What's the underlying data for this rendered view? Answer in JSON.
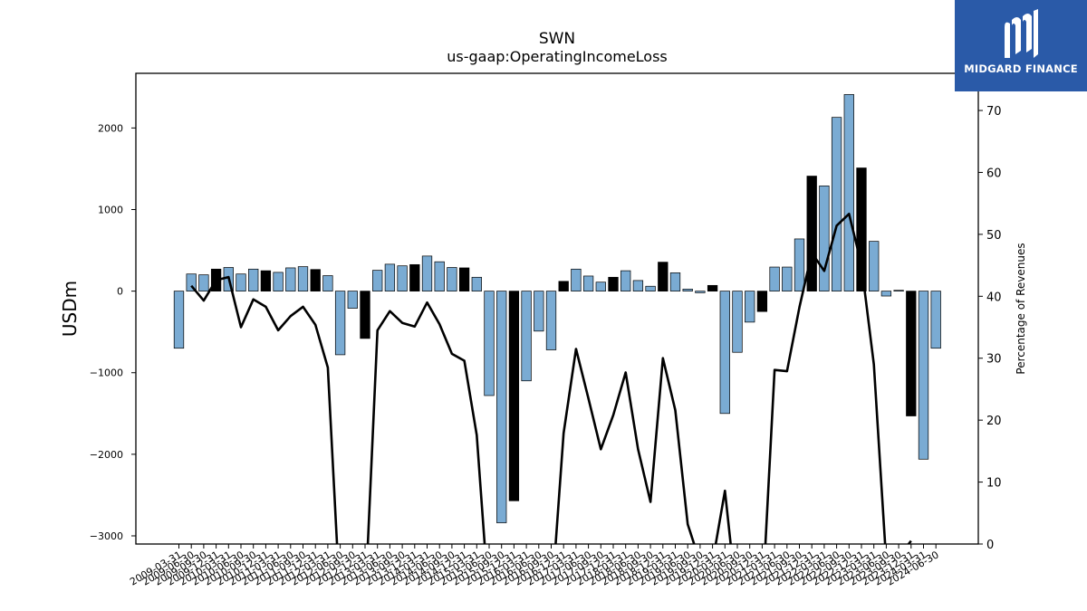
{
  "brand": {
    "name": "MIDGARD FINANCE",
    "icon": "midgard-m-icon"
  },
  "chart_data": {
    "type": "bar",
    "title": "SWN",
    "subtitle": "us-gaap:OperatingIncomeLoss",
    "ylabel": "USDm",
    "y2label": "Percentage of Revenues",
    "ylim": [
      -3100,
      2670
    ],
    "y2lim": [
      0,
      76
    ],
    "yticks": [
      -3000,
      -2000,
      -1000,
      0,
      1000,
      2000
    ],
    "y2ticks": [
      0,
      10,
      20,
      30,
      40,
      50,
      60,
      70
    ],
    "colors": {
      "quarter": "#7aabd3",
      "annual": "#000000",
      "line": "#000000"
    },
    "categories": [
      "2009-03-31",
      "2009-06-30",
      "2009-09-30",
      "2009-12-31",
      "2010-03-31",
      "2010-06-30",
      "2010-09-30",
      "2010-12-31",
      "2011-03-31",
      "2011-06-30",
      "2011-09-30",
      "2011-12-31",
      "2012-03-31",
      "2012-06-30",
      "2012-09-30",
      "2012-12-31",
      "2013-03-31",
      "2013-06-30",
      "2013-09-30",
      "2013-12-31",
      "2014-03-31",
      "2014-06-30",
      "2014-09-30",
      "2014-12-31",
      "2015-03-31",
      "2015-06-30",
      "2015-09-30",
      "2015-12-31",
      "2016-03-31",
      "2016-06-30",
      "2016-09-30",
      "2016-12-31",
      "2017-03-31",
      "2017-06-30",
      "2017-09-30",
      "2017-12-31",
      "2018-03-31",
      "2018-06-30",
      "2018-09-30",
      "2018-12-31",
      "2019-03-31",
      "2019-06-30",
      "2019-09-30",
      "2019-12-31",
      "2020-03-31",
      "2020-06-30",
      "2020-09-30",
      "2020-12-31",
      "2021-03-31",
      "2021-06-30",
      "2021-09-30",
      "2021-12-31",
      "2022-03-31",
      "2022-06-30",
      "2022-09-30",
      "2022-12-31",
      "2023-03-31",
      "2023-06-30",
      "2023-09-30",
      "2023-12-31",
      "2024-03-31",
      "2024-06-30"
    ],
    "tick_labels": [
      "2009-03-31",
      "2009-06-30",
      "2009-09-30",
      "2009-12-31",
      "2010-03-31",
      "2010-06-30",
      "2010-09-30",
      "2010-12-31",
      "2011-03-31",
      "2011-06-30",
      "2011-09-30",
      "2011-12-31",
      "2012-03-31",
      "2012-06-30",
      "2012-09-30",
      "2012-12-31",
      "2013-03-31",
      "2013-06-30",
      "2013-09-30",
      "2013-12-31",
      "2014-03-31",
      "2014-06-30",
      "2014-09-30",
      "2014-12-31",
      "2015-03-31",
      "2015-06-30",
      "2015-09-30",
      "2015-12-31",
      "2016-03-31",
      "2016-06-30",
      "2016-09-30",
      "2016-12-31",
      "2017-03-31",
      "2017-06-30",
      "2017-09-30",
      "2017-12-31",
      "2018-03-31",
      "2018-06-30",
      "2018-09-30",
      "2018-12-31",
      "2019-03-31",
      "2019-06-30",
      "2019-09-30",
      "2019-12-31",
      "2020-03-31",
      "2020-06-30",
      "2020-09-30",
      "2020-12-31",
      "2021-03-31",
      "2021-06-30",
      "2021-09-30",
      "2021-12-31",
      "2022-03-31",
      "2022-06-30",
      "2022-09-30",
      "2022-12-31",
      "2023-03-31",
      "2023-06-30",
      "2023-09-30",
      "2023-12-31",
      "2024-03-31",
      "2024-06-30"
    ],
    "annual": [
      false,
      false,
      false,
      true,
      false,
      false,
      false,
      true,
      false,
      false,
      false,
      true,
      false,
      false,
      false,
      true,
      false,
      false,
      false,
      true,
      false,
      false,
      false,
      true,
      false,
      false,
      false,
      true,
      false,
      false,
      false,
      true,
      false,
      false,
      false,
      true,
      false,
      false,
      false,
      true,
      false,
      false,
      false,
      true,
      false,
      false,
      false,
      true,
      false,
      false,
      false,
      true,
      false,
      false,
      false,
      true,
      false,
      false,
      false,
      true,
      false,
      false
    ],
    "values": [
      -700,
      210,
      200,
      270,
      290,
      210,
      270,
      250,
      230,
      285,
      300,
      265,
      190,
      -780,
      -210,
      -580,
      255,
      330,
      310,
      325,
      430,
      360,
      290,
      285,
      170,
      -1280,
      -2840,
      -2570,
      -1100,
      -490,
      -720,
      120,
      270,
      185,
      110,
      170,
      250,
      130,
      60,
      355,
      225,
      25,
      -20,
      70,
      -1500,
      -750,
      -380,
      -250,
      295,
      295,
      640,
      1410,
      1290,
      2130,
      2410,
      1510,
      610,
      -60,
      10,
      -1530,
      -2060,
      -700
    ],
    "pct_series": {
      "name": "Percentage of Revenues",
      "values": [
        null,
        41.7,
        39.3,
        42.6,
        43.1,
        35.0,
        39.5,
        38.3,
        34.5,
        36.8,
        38.3,
        35.4,
        28.5,
        -10,
        null,
        -10,
        34.5,
        37.6,
        35.7,
        35.1,
        39.0,
        35.5,
        30.7,
        29.6,
        17.6,
        -10,
        null,
        null,
        null,
        null,
        -10,
        17.9,
        31.5,
        23.5,
        15.3,
        20.8,
        27.7,
        15.3,
        6.8,
        30.0,
        21.6,
        3.2,
        -3,
        -3,
        8.6,
        -10,
        null,
        -10,
        28.1,
        27.9,
        38.2,
        47.0,
        44.1,
        51.4,
        53.3,
        45.1,
        29.0,
        -3,
        -2,
        0.5,
        null,
        null
      ]
    }
  }
}
